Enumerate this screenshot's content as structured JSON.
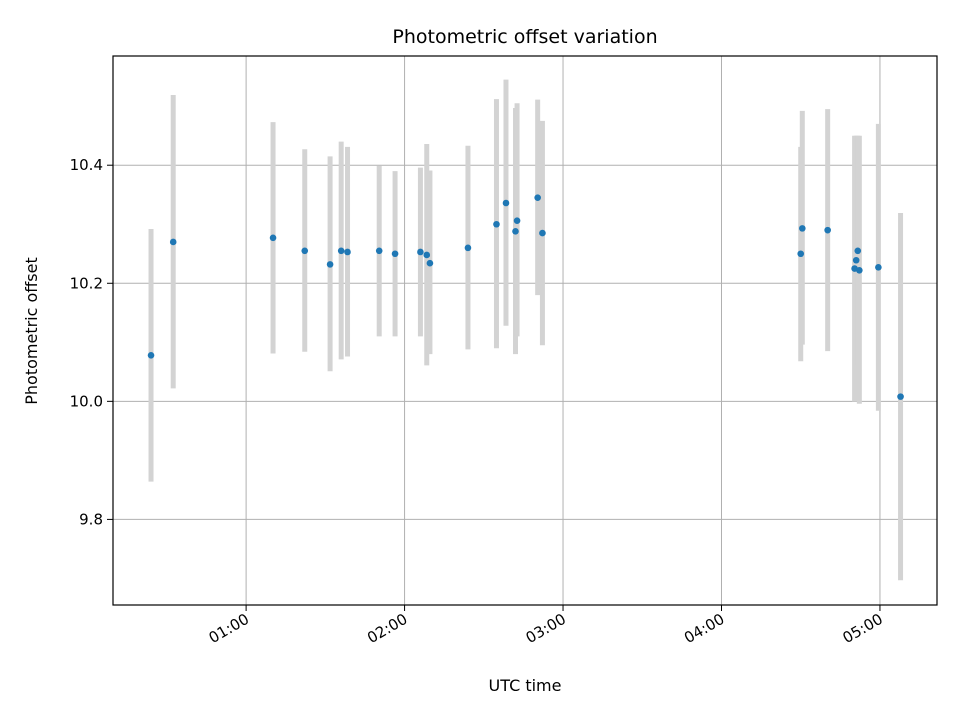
{
  "chart_data": {
    "type": "scatter",
    "title": "Photometric offset variation",
    "xlabel": "UTC time",
    "ylabel": "Photometric offset",
    "x_unit": "hours UTC",
    "xlim": [
      0.16,
      5.36
    ],
    "ylim": [
      9.655,
      10.585
    ],
    "grid": true,
    "x_ticks": [
      {
        "value": 1.0,
        "label": "01:00"
      },
      {
        "value": 2.0,
        "label": "02:00"
      },
      {
        "value": 3.0,
        "label": "03:00"
      },
      {
        "value": 4.0,
        "label": "04:00"
      },
      {
        "value": 5.0,
        "label": "05:00"
      }
    ],
    "y_ticks": [
      {
        "value": 9.8,
        "label": "9.8"
      },
      {
        "value": 10.0,
        "label": "10.0"
      },
      {
        "value": 10.2,
        "label": "10.2"
      },
      {
        "value": 10.4,
        "label": "10.4"
      }
    ],
    "colors": {
      "point": "#1f77b4",
      "errorbar": "#d3d3d3",
      "grid": "#b0b0b0"
    },
    "series": [
      {
        "points": [
          {
            "x": 0.4,
            "y": 10.078,
            "lo": 9.864,
            "hi": 10.292
          },
          {
            "x": 0.54,
            "y": 10.27,
            "lo": 10.022,
            "hi": 10.519
          },
          {
            "x": 1.17,
            "y": 10.277,
            "lo": 10.081,
            "hi": 10.473
          },
          {
            "x": 1.37,
            "y": 10.255,
            "lo": 10.084,
            "hi": 10.427
          },
          {
            "x": 1.53,
            "y": 10.232,
            "lo": 10.051,
            "hi": 10.415
          },
          {
            "x": 1.6,
            "y": 10.255,
            "lo": 10.071,
            "hi": 10.44
          },
          {
            "x": 1.64,
            "y": 10.253,
            "lo": 10.076,
            "hi": 10.431
          },
          {
            "x": 1.84,
            "y": 10.255,
            "lo": 10.11,
            "hi": 10.399
          },
          {
            "x": 1.94,
            "y": 10.25,
            "lo": 10.11,
            "hi": 10.39
          },
          {
            "x": 2.1,
            "y": 10.253,
            "lo": 10.11,
            "hi": 10.396
          },
          {
            "x": 2.14,
            "y": 10.248,
            "lo": 10.061,
            "hi": 10.436
          },
          {
            "x": 2.16,
            "y": 10.234,
            "lo": 10.08,
            "hi": 10.391
          },
          {
            "x": 2.4,
            "y": 10.26,
            "lo": 10.088,
            "hi": 10.433
          },
          {
            "x": 2.58,
            "y": 10.3,
            "lo": 10.09,
            "hi": 10.512
          },
          {
            "x": 2.64,
            "y": 10.336,
            "lo": 10.128,
            "hi": 10.545
          },
          {
            "x": 2.7,
            "y": 10.288,
            "lo": 10.08,
            "hi": 10.497
          },
          {
            "x": 2.71,
            "y": 10.306,
            "lo": 10.11,
            "hi": 10.505
          },
          {
            "x": 2.84,
            "y": 10.345,
            "lo": 10.18,
            "hi": 10.511
          },
          {
            "x": 2.87,
            "y": 10.285,
            "lo": 10.095,
            "hi": 10.475
          },
          {
            "x": 4.5,
            "y": 10.25,
            "lo": 10.068,
            "hi": 10.431
          },
          {
            "x": 4.51,
            "y": 10.293,
            "lo": 10.096,
            "hi": 10.492
          },
          {
            "x": 4.67,
            "y": 10.29,
            "lo": 10.085,
            "hi": 10.495
          },
          {
            "x": 4.84,
            "y": 10.225,
            "lo": 10.0,
            "hi": 10.45
          },
          {
            "x": 4.85,
            "y": 10.239,
            "lo": 10.03,
            "hi": 10.45
          },
          {
            "x": 4.86,
            "y": 10.255,
            "lo": 10.06,
            "hi": 10.45
          },
          {
            "x": 4.87,
            "y": 10.222,
            "lo": 9.996,
            "hi": 10.45
          },
          {
            "x": 4.99,
            "y": 10.227,
            "lo": 9.984,
            "hi": 10.47
          },
          {
            "x": 5.13,
            "y": 10.008,
            "lo": 9.697,
            "hi": 10.319
          }
        ]
      }
    ]
  }
}
